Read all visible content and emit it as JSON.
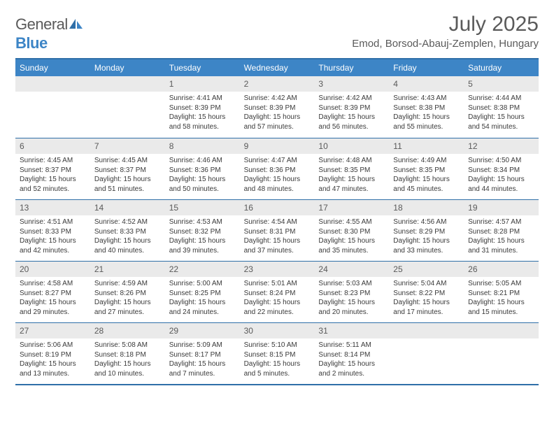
{
  "brand": {
    "general": "General",
    "blue": "Blue"
  },
  "title": "July 2025",
  "location": "Emod, Borsod-Abauj-Zemplen, Hungary",
  "colors": {
    "header_bg": "#3d85c6",
    "header_text": "#ffffff",
    "border": "#2f6fa8",
    "daynum_bg": "#eaeaea",
    "text": "#333333",
    "muted": "#5a5a5a",
    "logo_blue": "#3d85c6"
  },
  "day_headers": [
    "Sunday",
    "Monday",
    "Tuesday",
    "Wednesday",
    "Thursday",
    "Friday",
    "Saturday"
  ],
  "weeks": [
    [
      {
        "n": "",
        "sunrise": "",
        "sunset": "",
        "daylight": ""
      },
      {
        "n": "",
        "sunrise": "",
        "sunset": "",
        "daylight": ""
      },
      {
        "n": "1",
        "sunrise": "Sunrise: 4:41 AM",
        "sunset": "Sunset: 8:39 PM",
        "daylight": "Daylight: 15 hours and 58 minutes."
      },
      {
        "n": "2",
        "sunrise": "Sunrise: 4:42 AM",
        "sunset": "Sunset: 8:39 PM",
        "daylight": "Daylight: 15 hours and 57 minutes."
      },
      {
        "n": "3",
        "sunrise": "Sunrise: 4:42 AM",
        "sunset": "Sunset: 8:39 PM",
        "daylight": "Daylight: 15 hours and 56 minutes."
      },
      {
        "n": "4",
        "sunrise": "Sunrise: 4:43 AM",
        "sunset": "Sunset: 8:38 PM",
        "daylight": "Daylight: 15 hours and 55 minutes."
      },
      {
        "n": "5",
        "sunrise": "Sunrise: 4:44 AM",
        "sunset": "Sunset: 8:38 PM",
        "daylight": "Daylight: 15 hours and 54 minutes."
      }
    ],
    [
      {
        "n": "6",
        "sunrise": "Sunrise: 4:45 AM",
        "sunset": "Sunset: 8:37 PM",
        "daylight": "Daylight: 15 hours and 52 minutes."
      },
      {
        "n": "7",
        "sunrise": "Sunrise: 4:45 AM",
        "sunset": "Sunset: 8:37 PM",
        "daylight": "Daylight: 15 hours and 51 minutes."
      },
      {
        "n": "8",
        "sunrise": "Sunrise: 4:46 AM",
        "sunset": "Sunset: 8:36 PM",
        "daylight": "Daylight: 15 hours and 50 minutes."
      },
      {
        "n": "9",
        "sunrise": "Sunrise: 4:47 AM",
        "sunset": "Sunset: 8:36 PM",
        "daylight": "Daylight: 15 hours and 48 minutes."
      },
      {
        "n": "10",
        "sunrise": "Sunrise: 4:48 AM",
        "sunset": "Sunset: 8:35 PM",
        "daylight": "Daylight: 15 hours and 47 minutes."
      },
      {
        "n": "11",
        "sunrise": "Sunrise: 4:49 AM",
        "sunset": "Sunset: 8:35 PM",
        "daylight": "Daylight: 15 hours and 45 minutes."
      },
      {
        "n": "12",
        "sunrise": "Sunrise: 4:50 AM",
        "sunset": "Sunset: 8:34 PM",
        "daylight": "Daylight: 15 hours and 44 minutes."
      }
    ],
    [
      {
        "n": "13",
        "sunrise": "Sunrise: 4:51 AM",
        "sunset": "Sunset: 8:33 PM",
        "daylight": "Daylight: 15 hours and 42 minutes."
      },
      {
        "n": "14",
        "sunrise": "Sunrise: 4:52 AM",
        "sunset": "Sunset: 8:33 PM",
        "daylight": "Daylight: 15 hours and 40 minutes."
      },
      {
        "n": "15",
        "sunrise": "Sunrise: 4:53 AM",
        "sunset": "Sunset: 8:32 PM",
        "daylight": "Daylight: 15 hours and 39 minutes."
      },
      {
        "n": "16",
        "sunrise": "Sunrise: 4:54 AM",
        "sunset": "Sunset: 8:31 PM",
        "daylight": "Daylight: 15 hours and 37 minutes."
      },
      {
        "n": "17",
        "sunrise": "Sunrise: 4:55 AM",
        "sunset": "Sunset: 8:30 PM",
        "daylight": "Daylight: 15 hours and 35 minutes."
      },
      {
        "n": "18",
        "sunrise": "Sunrise: 4:56 AM",
        "sunset": "Sunset: 8:29 PM",
        "daylight": "Daylight: 15 hours and 33 minutes."
      },
      {
        "n": "19",
        "sunrise": "Sunrise: 4:57 AM",
        "sunset": "Sunset: 8:28 PM",
        "daylight": "Daylight: 15 hours and 31 minutes."
      }
    ],
    [
      {
        "n": "20",
        "sunrise": "Sunrise: 4:58 AM",
        "sunset": "Sunset: 8:27 PM",
        "daylight": "Daylight: 15 hours and 29 minutes."
      },
      {
        "n": "21",
        "sunrise": "Sunrise: 4:59 AM",
        "sunset": "Sunset: 8:26 PM",
        "daylight": "Daylight: 15 hours and 27 minutes."
      },
      {
        "n": "22",
        "sunrise": "Sunrise: 5:00 AM",
        "sunset": "Sunset: 8:25 PM",
        "daylight": "Daylight: 15 hours and 24 minutes."
      },
      {
        "n": "23",
        "sunrise": "Sunrise: 5:01 AM",
        "sunset": "Sunset: 8:24 PM",
        "daylight": "Daylight: 15 hours and 22 minutes."
      },
      {
        "n": "24",
        "sunrise": "Sunrise: 5:03 AM",
        "sunset": "Sunset: 8:23 PM",
        "daylight": "Daylight: 15 hours and 20 minutes."
      },
      {
        "n": "25",
        "sunrise": "Sunrise: 5:04 AM",
        "sunset": "Sunset: 8:22 PM",
        "daylight": "Daylight: 15 hours and 17 minutes."
      },
      {
        "n": "26",
        "sunrise": "Sunrise: 5:05 AM",
        "sunset": "Sunset: 8:21 PM",
        "daylight": "Daylight: 15 hours and 15 minutes."
      }
    ],
    [
      {
        "n": "27",
        "sunrise": "Sunrise: 5:06 AM",
        "sunset": "Sunset: 8:19 PM",
        "daylight": "Daylight: 15 hours and 13 minutes."
      },
      {
        "n": "28",
        "sunrise": "Sunrise: 5:08 AM",
        "sunset": "Sunset: 8:18 PM",
        "daylight": "Daylight: 15 hours and 10 minutes."
      },
      {
        "n": "29",
        "sunrise": "Sunrise: 5:09 AM",
        "sunset": "Sunset: 8:17 PM",
        "daylight": "Daylight: 15 hours and 7 minutes."
      },
      {
        "n": "30",
        "sunrise": "Sunrise: 5:10 AM",
        "sunset": "Sunset: 8:15 PM",
        "daylight": "Daylight: 15 hours and 5 minutes."
      },
      {
        "n": "31",
        "sunrise": "Sunrise: 5:11 AM",
        "sunset": "Sunset: 8:14 PM",
        "daylight": "Daylight: 15 hours and 2 minutes."
      },
      {
        "n": "",
        "sunrise": "",
        "sunset": "",
        "daylight": ""
      },
      {
        "n": "",
        "sunrise": "",
        "sunset": "",
        "daylight": ""
      }
    ]
  ]
}
